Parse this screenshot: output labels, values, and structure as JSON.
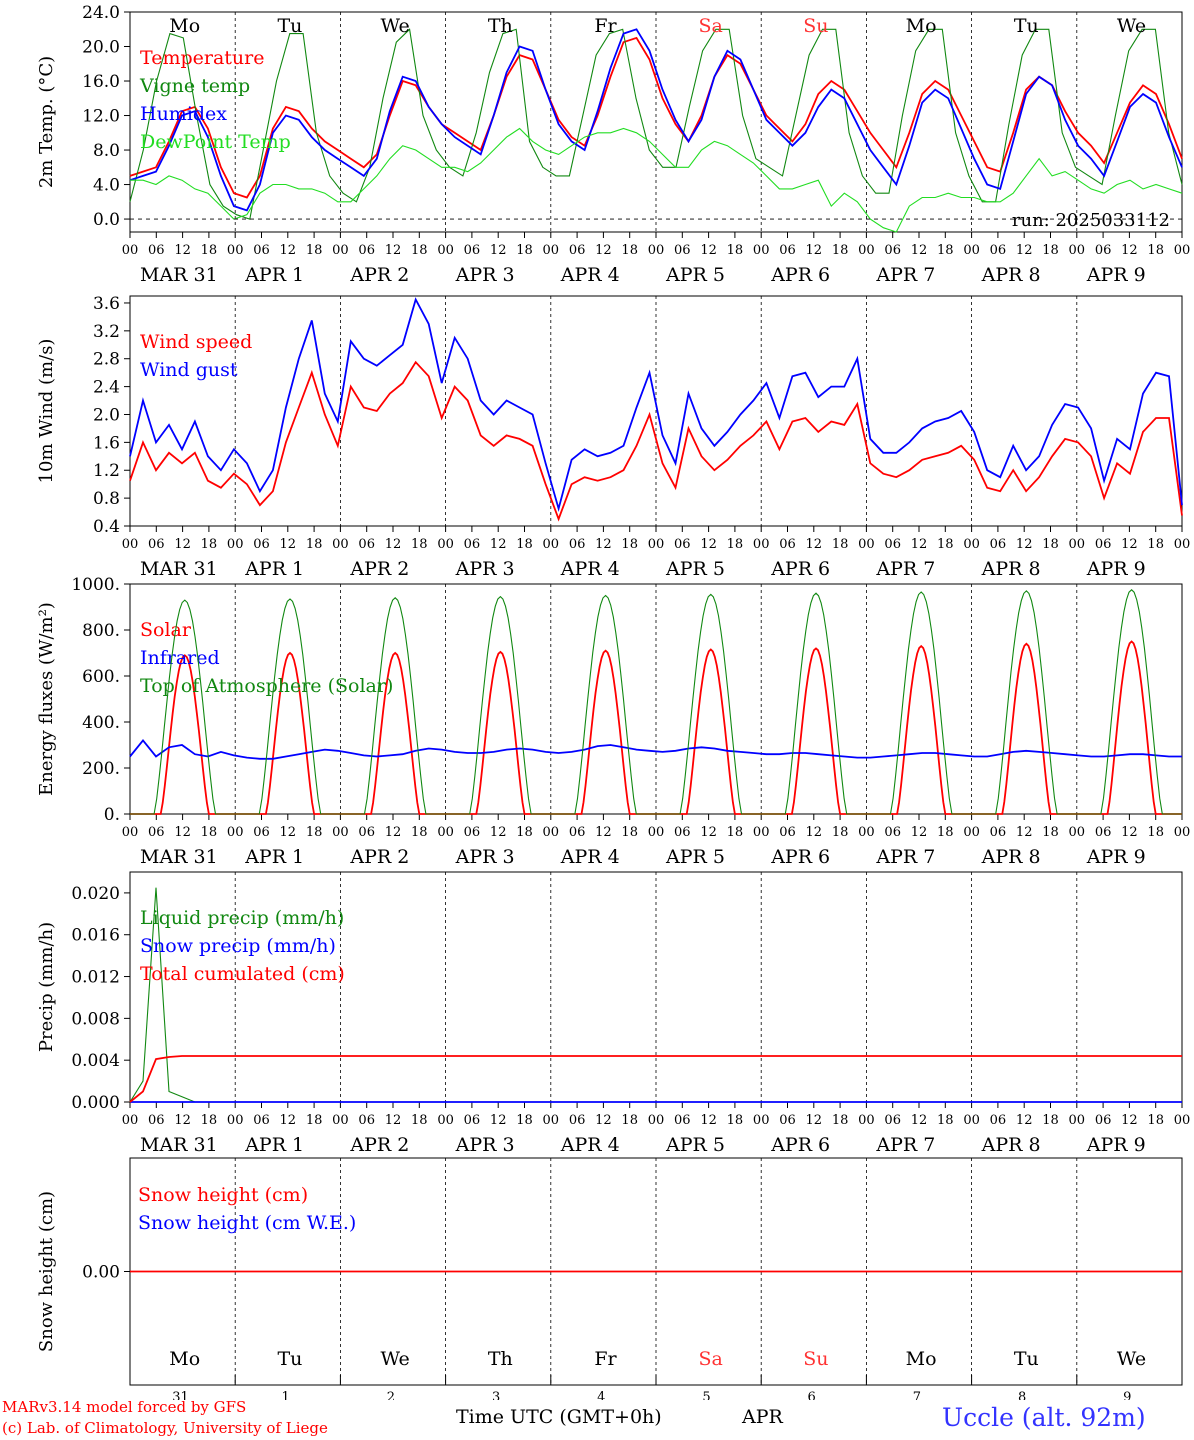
{
  "days": {
    "top_names": [
      "Mo",
      "Tu",
      "We",
      "Th",
      "Fr",
      "Sa",
      "Su",
      "Mo",
      "Tu",
      "We"
    ],
    "weekend_color": "#ff3333",
    "weekend_index": [
      5,
      6
    ],
    "date_labels": [
      "MAR 31",
      "APR  1",
      "APR  2",
      "APR  3",
      "APR  4",
      "APR  5",
      "APR  6",
      "APR  7",
      "APR  8",
      "APR  9"
    ],
    "hour_ticks": [
      "00",
      "06",
      "12",
      "18"
    ],
    "day_numbers": [
      "31",
      "1",
      "2",
      "3",
      "4",
      "5",
      "6",
      "7",
      "8",
      "9"
    ]
  },
  "footer": {
    "model": "MARv3.14 model forced by GFS",
    "lab": "(c) Lab. of Climatology, University of Liege",
    "xlabel": "Time UTC (GMT+0h)",
    "month": "APR",
    "station": "Uccle (alt. 92m)"
  },
  "colors": {
    "red": "#ff0000",
    "darkgreen": "#118811",
    "blue": "#0000ff",
    "lightgreen": "#22dd22"
  },
  "chart_data": [
    {
      "type": "line",
      "ylabel": "2m Temp. (°C)",
      "ylim": [
        -1.5,
        24
      ],
      "yticks": [
        "0.0",
        "4.0",
        "8.0",
        "12.0",
        "16.0",
        "20.0",
        "24.0"
      ],
      "annotation": "run: 2025033112",
      "hline_dashed": 0,
      "series": [
        {
          "name": "Temperature",
          "color": "#ff0000",
          "values": [
            5.0,
            5.5,
            6.0,
            9.0,
            12.5,
            13.0,
            10.5,
            6.0,
            3.0,
            2.5,
            5.0,
            10.5,
            13.0,
            12.5,
            10.5,
            9.0,
            8.0,
            7.0,
            6.0,
            7.5,
            12.0,
            16.0,
            15.5,
            13.0,
            11.0,
            10.0,
            9.0,
            8.0,
            12.0,
            16.5,
            19.0,
            18.5,
            15.0,
            11.5,
            9.5,
            8.5,
            12.0,
            16.5,
            20.5,
            21.0,
            18.5,
            14.0,
            11.0,
            9.0,
            12.0,
            16.5,
            19.0,
            18.0,
            15.0,
            12.0,
            10.5,
            9.0,
            11.0,
            14.5,
            16.0,
            15.0,
            12.5,
            10.0,
            8.0,
            6.0,
            10.0,
            14.5,
            16.0,
            15.0,
            12.0,
            9.0,
            6.0,
            5.5,
            10.0,
            15.0,
            16.5,
            15.5,
            12.5,
            10.0,
            8.5,
            6.5,
            10.0,
            13.5,
            15.5,
            14.5,
            11.0,
            7.0
          ]
        },
        {
          "name": "Vigne temp",
          "color": "#118811",
          "values": [
            2.0,
            8.0,
            16.0,
            21.5,
            21.0,
            12.0,
            4.0,
            1.5,
            0.5,
            0.0,
            8.0,
            16.0,
            21.5,
            21.5,
            10.0,
            5.0,
            3.0,
            2.0,
            6.0,
            14.0,
            20.5,
            22.0,
            12.0,
            8.0,
            6.0,
            5.0,
            10.0,
            17.0,
            21.5,
            22.0,
            9.0,
            6.0,
            5.0,
            5.0,
            12.0,
            19.0,
            21.5,
            22.0,
            14.0,
            8.0,
            6.0,
            6.0,
            13.0,
            19.5,
            22.0,
            22.0,
            12.0,
            7.0,
            6.0,
            5.0,
            12.0,
            19.0,
            22.0,
            22.0,
            10.0,
            5.0,
            3.0,
            3.0,
            12.0,
            19.5,
            22.0,
            22.0,
            10.0,
            5.0,
            2.0,
            2.0,
            11.0,
            19.0,
            22.0,
            22.0,
            10.0,
            6.0,
            5.0,
            4.0,
            12.0,
            19.5,
            22.0,
            22.0,
            10.0,
            4.0
          ]
        },
        {
          "name": "Humidex",
          "color": "#0000ff",
          "values": [
            4.5,
            5.0,
            5.5,
            8.5,
            12.0,
            12.5,
            9.5,
            5.0,
            1.5,
            1.0,
            4.0,
            10.0,
            12.0,
            11.5,
            9.5,
            8.0,
            7.0,
            6.0,
            5.0,
            7.0,
            12.5,
            16.5,
            16.0,
            13.0,
            11.0,
            9.5,
            8.5,
            7.5,
            12.0,
            17.0,
            20.0,
            19.5,
            15.0,
            11.0,
            9.0,
            8.0,
            12.5,
            17.5,
            21.5,
            22.0,
            19.5,
            15.0,
            11.5,
            9.0,
            11.5,
            16.5,
            19.5,
            18.5,
            15.0,
            11.5,
            10.0,
            8.5,
            10.0,
            13.0,
            15.0,
            14.0,
            11.0,
            8.0,
            6.0,
            4.0,
            8.5,
            13.5,
            15.0,
            14.0,
            10.5,
            7.0,
            4.0,
            3.5,
            9.0,
            14.5,
            16.5,
            15.5,
            11.5,
            8.5,
            7.0,
            5.0,
            9.0,
            13.0,
            14.5,
            13.5,
            9.5,
            6.0
          ]
        },
        {
          "name": "DewPoint Temp",
          "color": "#22dd22",
          "values": [
            4.5,
            4.5,
            4.0,
            5.0,
            4.5,
            3.5,
            3.0,
            1.5,
            0.0,
            0.5,
            3.0,
            4.0,
            4.0,
            3.5,
            3.5,
            3.0,
            2.0,
            2.0,
            3.5,
            5.0,
            7.0,
            8.5,
            8.0,
            7.0,
            6.0,
            6.0,
            5.5,
            6.5,
            8.0,
            9.5,
            10.5,
            9.0,
            8.0,
            7.5,
            8.5,
            9.5,
            10.0,
            10.0,
            10.5,
            10.0,
            9.0,
            7.5,
            6.0,
            6.0,
            8.0,
            9.0,
            8.5,
            7.5,
            6.5,
            5.0,
            3.5,
            3.5,
            4.0,
            4.5,
            1.5,
            3.0,
            2.0,
            0.0,
            -1.0,
            -1.5,
            1.5,
            2.5,
            2.5,
            3.0,
            2.5,
            2.5,
            2.0,
            2.0,
            3.0,
            5.0,
            7.0,
            5.0,
            5.5,
            4.5,
            3.5,
            3.0,
            4.0,
            4.5,
            3.5,
            4.0,
            3.5,
            3.0
          ]
        }
      ]
    },
    {
      "type": "line",
      "ylabel": "10m Wind (m/s)",
      "ylim": [
        0.4,
        3.7
      ],
      "yticks": [
        "0.4",
        "0.8",
        "1.2",
        "1.6",
        "2.0",
        "2.4",
        "2.8",
        "3.2",
        "3.6"
      ],
      "series": [
        {
          "name": "Wind speed",
          "color": "#ff0000",
          "values": [
            1.05,
            1.6,
            1.2,
            1.45,
            1.3,
            1.45,
            1.05,
            0.95,
            1.15,
            1.0,
            0.7,
            0.9,
            1.6,
            2.1,
            2.6,
            2.0,
            1.55,
            2.4,
            2.1,
            2.05,
            2.3,
            2.45,
            2.75,
            2.55,
            1.95,
            2.4,
            2.2,
            1.7,
            1.55,
            1.7,
            1.65,
            1.55,
            1.0,
            0.5,
            1.0,
            1.1,
            1.05,
            1.1,
            1.2,
            1.55,
            2.0,
            1.3,
            0.95,
            1.8,
            1.4,
            1.2,
            1.35,
            1.55,
            1.7,
            1.9,
            1.5,
            1.9,
            1.95,
            1.75,
            1.9,
            1.85,
            2.15,
            1.3,
            1.15,
            1.1,
            1.2,
            1.35,
            1.4,
            1.45,
            1.55,
            1.35,
            0.95,
            0.9,
            1.2,
            0.9,
            1.1,
            1.4,
            1.65,
            1.6,
            1.4,
            0.8,
            1.3,
            1.15,
            1.75,
            1.95,
            1.95,
            0.55
          ]
        },
        {
          "name": "Wind gust",
          "color": "#0000ff",
          "values": [
            1.4,
            2.2,
            1.6,
            1.85,
            1.5,
            1.9,
            1.4,
            1.2,
            1.5,
            1.3,
            0.9,
            1.2,
            2.1,
            2.8,
            3.35,
            2.3,
            1.9,
            3.05,
            2.8,
            2.7,
            2.85,
            3.0,
            3.65,
            3.3,
            2.45,
            3.1,
            2.8,
            2.2,
            2.0,
            2.2,
            2.1,
            2.0,
            1.3,
            0.65,
            1.35,
            1.5,
            1.4,
            1.45,
            1.55,
            2.1,
            2.6,
            1.7,
            1.3,
            2.3,
            1.8,
            1.55,
            1.75,
            2.0,
            2.2,
            2.45,
            1.95,
            2.55,
            2.6,
            2.25,
            2.4,
            2.4,
            2.8,
            1.65,
            1.45,
            1.45,
            1.6,
            1.8,
            1.9,
            1.95,
            2.05,
            1.75,
            1.2,
            1.1,
            1.55,
            1.2,
            1.4,
            1.85,
            2.15,
            2.1,
            1.8,
            1.05,
            1.65,
            1.5,
            2.3,
            2.6,
            2.55,
            0.7
          ]
        }
      ]
    },
    {
      "type": "line",
      "ylabel": "Energy fluxes (W/m²)",
      "ylim": [
        0,
        1000
      ],
      "yticks": [
        "0.",
        "200.",
        "400.",
        "600.",
        "800.",
        "1000."
      ],
      "series": [
        {
          "name": "Solar",
          "color": "#ff0000",
          "peaks": [
            690,
            700,
            700,
            705,
            710,
            715,
            720,
            730,
            740,
            750
          ]
        },
        {
          "name": "Infrared",
          "color": "#0000ff",
          "values": [
            250,
            320,
            250,
            290,
            300,
            260,
            250,
            270,
            255,
            245,
            240,
            240,
            250,
            260,
            270,
            280,
            275,
            265,
            255,
            250,
            255,
            260,
            275,
            285,
            280,
            270,
            265,
            265,
            270,
            280,
            285,
            280,
            270,
            265,
            270,
            280,
            295,
            300,
            290,
            280,
            275,
            270,
            275,
            285,
            290,
            285,
            275,
            270,
            265,
            260,
            260,
            265,
            265,
            260,
            255,
            250,
            245,
            245,
            250,
            255,
            260,
            265,
            265,
            260,
            255,
            250,
            250,
            260,
            270,
            275,
            270,
            265,
            260,
            255,
            250,
            250,
            255,
            260,
            260,
            255,
            250,
            250
          ]
        },
        {
          "name": "Top of Atmosphere (Solar)",
          "color": "#118811",
          "peaks": [
            930,
            935,
            940,
            945,
            950,
            955,
            960,
            965,
            970,
            975
          ]
        }
      ]
    },
    {
      "type": "line",
      "ylabel": "Precip (mm/h)",
      "ylim": [
        0,
        0.022
      ],
      "yticks": [
        "0.000",
        "0.004",
        "0.008",
        "0.012",
        "0.016",
        "0.020"
      ],
      "series": [
        {
          "name": "Liquid precip (mm/h)",
          "color": "#118811",
          "values": [
            0,
            0.002,
            0.0205,
            0.001,
            0.0005,
            0,
            0,
            0,
            0,
            0,
            0,
            0,
            0,
            0,
            0,
            0,
            0,
            0,
            0,
            0,
            0,
            0,
            0,
            0,
            0,
            0,
            0,
            0,
            0,
            0,
            0,
            0,
            0,
            0,
            0,
            0,
            0,
            0,
            0,
            0,
            0,
            0,
            0,
            0,
            0,
            0,
            0,
            0,
            0,
            0,
            0,
            0,
            0,
            0,
            0,
            0,
            0,
            0,
            0,
            0,
            0,
            0,
            0,
            0,
            0,
            0,
            0,
            0,
            0,
            0,
            0,
            0,
            0,
            0,
            0,
            0,
            0,
            0,
            0,
            0,
            0,
            0
          ]
        },
        {
          "name": "Snow precip (mm/h)",
          "color": "#0000ff",
          "values": [
            0,
            0,
            0,
            0,
            0,
            0,
            0,
            0,
            0,
            0,
            0,
            0,
            0,
            0,
            0,
            0,
            0,
            0,
            0,
            0,
            0,
            0,
            0,
            0,
            0,
            0,
            0,
            0,
            0,
            0,
            0,
            0,
            0,
            0,
            0,
            0,
            0,
            0,
            0,
            0,
            0,
            0,
            0,
            0,
            0,
            0,
            0,
            0,
            0,
            0,
            0,
            0,
            0,
            0,
            0,
            0,
            0,
            0,
            0,
            0,
            0,
            0,
            0,
            0,
            0,
            0,
            0,
            0,
            0,
            0,
            0,
            0,
            0,
            0,
            0,
            0,
            0,
            0,
            0,
            0,
            0,
            0
          ]
        },
        {
          "name": "Total cumulated (cm)",
          "color": "#ff0000",
          "values": [
            0,
            0.001,
            0.0041,
            0.0043,
            0.0044,
            0.0044,
            0.0044,
            0.0044,
            0.0044,
            0.0044,
            0.0044,
            0.0044,
            0.0044,
            0.0044,
            0.0044,
            0.0044,
            0.0044,
            0.0044,
            0.0044,
            0.0044,
            0.0044,
            0.0044,
            0.0044,
            0.0044,
            0.0044,
            0.0044,
            0.0044,
            0.0044,
            0.0044,
            0.0044,
            0.0044,
            0.0044,
            0.0044,
            0.0044,
            0.0044,
            0.0044,
            0.0044,
            0.0044,
            0.0044,
            0.0044,
            0.0044,
            0.0044,
            0.0044,
            0.0044,
            0.0044,
            0.0044,
            0.0044,
            0.0044,
            0.0044,
            0.0044,
            0.0044,
            0.0044,
            0.0044,
            0.0044,
            0.0044,
            0.0044,
            0.0044,
            0.0044,
            0.0044,
            0.0044,
            0.0044,
            0.0044,
            0.0044,
            0.0044,
            0.0044,
            0.0044,
            0.0044,
            0.0044,
            0.0044,
            0.0044,
            0.0044,
            0.0044,
            0.0044,
            0.0044,
            0.0044,
            0.0044,
            0.0044,
            0.0044,
            0.0044,
            0.0044,
            0.0044,
            0.0044
          ]
        }
      ]
    },
    {
      "type": "line",
      "ylabel": "Snow height (cm)",
      "ylim": [
        -1,
        1
      ],
      "yticks": [
        "0.00"
      ],
      "series": [
        {
          "name": "Snow height (cm)",
          "color": "#ff0000",
          "values": [
            0,
            0
          ]
        },
        {
          "name": "Snow height (cm W.E.)",
          "color": "#0000ff",
          "values": []
        }
      ]
    }
  ]
}
